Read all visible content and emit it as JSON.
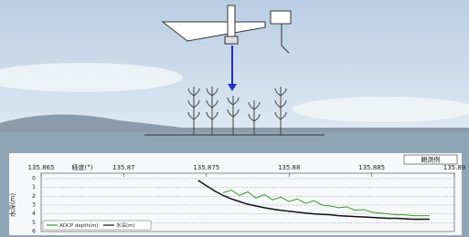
{
  "chart_data": {
    "type": "line",
    "x_label": "経度(°)",
    "y_label": "水深(m)",
    "badge": "観測例",
    "x": [
      135.8745,
      135.875,
      135.8755,
      135.876,
      135.8765,
      135.877,
      135.8775,
      135.878,
      135.8785,
      135.879,
      135.8795,
      135.88,
      135.8805,
      135.881,
      135.8815,
      135.882,
      135.8825,
      135.883,
      135.8835,
      135.884,
      135.8845,
      135.885,
      135.8855,
      135.886,
      135.8865,
      135.887,
      135.8875,
      135.888,
      135.8885
    ],
    "series": [
      {
        "name": "ADCP depth(m)",
        "color": "#3a9a2a",
        "values": [
          null,
          null,
          null,
          1.6,
          1.3,
          1.9,
          1.5,
          2.2,
          1.8,
          2.4,
          2.1,
          2.6,
          2.3,
          2.8,
          2.5,
          3.0,
          3.1,
          3.3,
          3.2,
          3.6,
          3.5,
          3.8,
          3.9,
          4.0,
          4.1,
          4.1,
          4.2,
          4.2,
          4.2
        ]
      },
      {
        "name": "水深(m)",
        "color": "#111111",
        "values": [
          0.2,
          0.8,
          1.4,
          1.9,
          2.3,
          2.6,
          2.9,
          3.1,
          3.3,
          3.45,
          3.6,
          3.7,
          3.8,
          3.9,
          4.0,
          4.05,
          4.1,
          4.2,
          4.25,
          4.3,
          4.35,
          4.4,
          4.45,
          4.5,
          4.5,
          4.55,
          4.6,
          4.6,
          4.6
        ]
      }
    ],
    "xlim": [
      135.865,
      135.89
    ],
    "xticks": [
      135.865,
      135.87,
      135.875,
      135.88,
      135.885,
      135.89
    ],
    "ylim": [
      0,
      6
    ],
    "yticks": [
      0,
      1,
      2,
      3,
      4,
      5,
      6
    ],
    "y_reversed": true,
    "grid": true
  }
}
